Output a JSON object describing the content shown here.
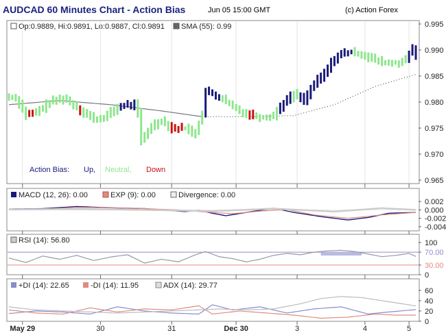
{
  "header": {
    "title": "AUDCAD 60 Minutes Chart - Action Bias",
    "datetime": "Jun 05 15:00 GMT",
    "copyright": "(c) Action Forex"
  },
  "colors": {
    "up": "#1a1a7a",
    "neutral": "#8ee68e",
    "down": "#cc1111",
    "sma": "#777777",
    "macd": "#1a1a7a",
    "exp": "#e08a80",
    "divergence": "#cccccc",
    "rsi": "#999999",
    "rsi_band": "#8b8bd0",
    "plus_di": "#8b8bd0",
    "minus_di": "#e08a80",
    "adx": "#bbbbbb"
  },
  "chart_data": [
    {
      "type": "ohlc",
      "panel": "price",
      "legend": {
        "ohlc": "Op:0.9889, Hi:0.9891, Lo:0.9887, Cl:0.9891",
        "sma": "SMA (55): 0.99"
      },
      "ylim": [
        0.965,
        0.995
      ],
      "yticks": [
        "0.995",
        "0.990",
        "0.985",
        "0.980",
        "0.975",
        "0.970",
        "0.965"
      ],
      "bias_label": {
        "title": "Action Bias:",
        "up": "Up,",
        "neutral": "Neutral,",
        "down": "Down"
      },
      "anchors": [
        {
          "i": 0,
          "v": 0.981
        },
        {
          "i": 2,
          "v": 0.9808
        },
        {
          "i": 5,
          "v": 0.9775
        },
        {
          "i": 8,
          "v": 0.978
        },
        {
          "i": 12,
          "v": 0.98
        },
        {
          "i": 16,
          "v": 0.9808
        },
        {
          "i": 19,
          "v": 0.9795
        },
        {
          "i": 23,
          "v": 0.9775
        },
        {
          "i": 26,
          "v": 0.9765
        },
        {
          "i": 29,
          "v": 0.9775
        },
        {
          "i": 32,
          "v": 0.979
        },
        {
          "i": 35,
          "v": 0.9795
        },
        {
          "i": 37,
          "v": 0.9795
        },
        {
          "i": 38,
          "v": 0.978
        },
        {
          "i": 39,
          "v": 0.9725
        },
        {
          "i": 42,
          "v": 0.9755
        },
        {
          "i": 45,
          "v": 0.9765
        },
        {
          "i": 48,
          "v": 0.975
        },
        {
          "i": 52,
          "v": 0.975
        },
        {
          "i": 55,
          "v": 0.974
        },
        {
          "i": 57,
          "v": 0.978
        },
        {
          "i": 58,
          "v": 0.982
        },
        {
          "i": 60,
          "v": 0.9815
        },
        {
          "i": 63,
          "v": 0.9805
        },
        {
          "i": 66,
          "v": 0.979
        },
        {
          "i": 69,
          "v": 0.978
        },
        {
          "i": 72,
          "v": 0.9775
        },
        {
          "i": 75,
          "v": 0.977
        },
        {
          "i": 78,
          "v": 0.9775
        },
        {
          "i": 81,
          "v": 0.98
        },
        {
          "i": 84,
          "v": 0.9815
        },
        {
          "i": 87,
          "v": 0.9805
        },
        {
          "i": 90,
          "v": 0.9835
        },
        {
          "i": 93,
          "v": 0.9855
        },
        {
          "i": 96,
          "v": 0.9885
        },
        {
          "i": 99,
          "v": 0.9895
        },
        {
          "i": 102,
          "v": 0.9895
        },
        {
          "i": 105,
          "v": 0.989
        },
        {
          "i": 108,
          "v": 0.988
        },
        {
          "i": 111,
          "v": 0.9875
        },
        {
          "i": 114,
          "v": 0.9875
        },
        {
          "i": 117,
          "v": 0.988
        },
        {
          "i": 119,
          "v": 0.9905
        },
        {
          "i": 120,
          "v": 0.989
        }
      ],
      "bar_count": 121,
      "bias_segments": [
        {
          "from": 0,
          "to": 5,
          "bias": "neutral"
        },
        {
          "from": 6,
          "to": 7,
          "bias": "down"
        },
        {
          "from": 8,
          "to": 20,
          "bias": "neutral"
        },
        {
          "from": 21,
          "to": 21,
          "bias": "down"
        },
        {
          "from": 22,
          "to": 32,
          "bias": "neutral"
        },
        {
          "from": 33,
          "to": 37,
          "bias": "up"
        },
        {
          "from": 38,
          "to": 47,
          "bias": "neutral"
        },
        {
          "from": 48,
          "to": 51,
          "bias": "down"
        },
        {
          "from": 52,
          "to": 57,
          "bias": "neutral"
        },
        {
          "from": 58,
          "to": 62,
          "bias": "up"
        },
        {
          "from": 63,
          "to": 70,
          "bias": "neutral"
        },
        {
          "from": 71,
          "to": 72,
          "bias": "down"
        },
        {
          "from": 73,
          "to": 79,
          "bias": "neutral"
        },
        {
          "from": 80,
          "to": 83,
          "bias": "up"
        },
        {
          "from": 84,
          "to": 85,
          "bias": "neutral"
        },
        {
          "from": 86,
          "to": 101,
          "bias": "up"
        },
        {
          "from": 102,
          "to": 117,
          "bias": "neutral"
        },
        {
          "from": 118,
          "to": 120,
          "bias": "up"
        }
      ],
      "sma_points": [
        {
          "i": 0,
          "v": 0.9795
        },
        {
          "i": 15,
          "v": 0.9803
        },
        {
          "i": 30,
          "v": 0.9795
        },
        {
          "i": 45,
          "v": 0.9783
        },
        {
          "i": 57,
          "v": 0.9772
        },
        {
          "i": 72,
          "v": 0.9772
        },
        {
          "i": 84,
          "v": 0.9774
        },
        {
          "i": 96,
          "v": 0.9795
        },
        {
          "i": 108,
          "v": 0.983
        },
        {
          "i": 120,
          "v": 0.9853
        }
      ],
      "x_ticks": [
        "May 29",
        "30",
        "31",
        "Dec 30",
        "3",
        "4",
        "5"
      ],
      "x_tick_bars": [
        4,
        27,
        48,
        67,
        85,
        105,
        118
      ]
    },
    {
      "type": "line",
      "panel": "macd",
      "legend": {
        "macd": "MACD (12, 26): 0.00",
        "exp": "EXP (9): 0.00",
        "divergence": "Divergence: 0.00"
      },
      "ylim": [
        -0.005,
        0.003
      ],
      "yticks": [
        "0.002",
        "0.000",
        "-0.002",
        "-0.004"
      ],
      "series": [
        {
          "key": "macd",
          "points": [
            [
              0,
              0.0002
            ],
            [
              10,
              0.0003
            ],
            [
              20,
              0.0008
            ],
            [
              30,
              0.0005
            ],
            [
              40,
              0.0003
            ],
            [
              48,
              -0.0002
            ],
            [
              52,
              -0.0004
            ],
            [
              56,
              -0.0001
            ],
            [
              60,
              -0.0008
            ],
            [
              64,
              -0.0014
            ],
            [
              70,
              -0.0006
            ],
            [
              78,
              0.0004
            ],
            [
              84,
              -0.0006
            ],
            [
              92,
              -0.0016
            ],
            [
              100,
              -0.0024
            ],
            [
              106,
              -0.0018
            ],
            [
              112,
              -0.0008
            ],
            [
              120,
              -0.0006
            ]
          ]
        },
        {
          "key": "exp",
          "points": [
            [
              0,
              0.0001
            ],
            [
              10,
              0.0002
            ],
            [
              20,
              0.0006
            ],
            [
              30,
              0.0005
            ],
            [
              40,
              0.0003
            ],
            [
              50,
              0.0
            ],
            [
              58,
              -0.0005
            ],
            [
              66,
              -0.0009
            ],
            [
              74,
              -0.0003
            ],
            [
              82,
              0.0001
            ],
            [
              90,
              -0.0012
            ],
            [
              100,
              -0.002
            ],
            [
              110,
              -0.0012
            ],
            [
              120,
              -0.0006
            ]
          ]
        },
        {
          "key": "divergence",
          "points": [
            [
              0,
              0.0001
            ],
            [
              20,
              0.0002
            ],
            [
              40,
              0.0
            ],
            [
              60,
              -0.0003
            ],
            [
              78,
              0.0003
            ],
            [
              96,
              -0.0004
            ],
            [
              110,
              0.0004
            ],
            [
              120,
              0.0
            ]
          ]
        }
      ]
    },
    {
      "type": "line",
      "panel": "rsi",
      "legend": {
        "rsi": "RSI (14): 56.80"
      },
      "ylim": [
        0,
        100
      ],
      "yticks": [
        "100",
        "70.00",
        "30.00",
        "0"
      ],
      "series": [
        {
          "key": "rsi",
          "points": [
            [
              0,
              52
            ],
            [
              5,
              38
            ],
            [
              10,
              58
            ],
            [
              15,
              48
            ],
            [
              20,
              60
            ],
            [
              25,
              44
            ],
            [
              30,
              55
            ],
            [
              35,
              62
            ],
            [
              40,
              36
            ],
            [
              45,
              48
            ],
            [
              50,
              40
            ],
            [
              55,
              62
            ],
            [
              58,
              72
            ],
            [
              62,
              56
            ],
            [
              66,
              50
            ],
            [
              70,
              40
            ],
            [
              74,
              48
            ],
            [
              78,
              60
            ],
            [
              82,
              66
            ],
            [
              86,
              62
            ],
            [
              90,
              70
            ],
            [
              94,
              74
            ],
            [
              98,
              76
            ],
            [
              102,
              72
            ],
            [
              106,
              64
            ],
            [
              110,
              56
            ],
            [
              114,
              60
            ],
            [
              118,
              66
            ],
            [
              120,
              56.8
            ]
          ]
        }
      ]
    },
    {
      "type": "line",
      "panel": "dmi",
      "legend": {
        "plus_di": "+DI (14): 22.65",
        "minus_di": "-DI (14): 11.95",
        "adx": "ADX (14): 29.77"
      },
      "ylim": [
        0,
        65
      ],
      "yticks": [
        "60",
        "40",
        "20",
        "0"
      ],
      "series": [
        {
          "key": "plus_di",
          "points": [
            [
              0,
              15
            ],
            [
              8,
              20
            ],
            [
              16,
              18
            ],
            [
              24,
              14
            ],
            [
              32,
              28
            ],
            [
              40,
              20
            ],
            [
              48,
              16
            ],
            [
              56,
              14
            ],
            [
              60,
              32
            ],
            [
              66,
              22
            ],
            [
              74,
              28
            ],
            [
              82,
              16
            ],
            [
              90,
              24
            ],
            [
              98,
              28
            ],
            [
              106,
              14
            ],
            [
              112,
              18
            ],
            [
              120,
              22.65
            ]
          ]
        },
        {
          "key": "minus_di",
          "points": [
            [
              0,
              22
            ],
            [
              8,
              16
            ],
            [
              16,
              14
            ],
            [
              24,
              26
            ],
            [
              32,
              18
            ],
            [
              40,
              24
            ],
            [
              48,
              22
            ],
            [
              56,
              30
            ],
            [
              60,
              14
            ],
            [
              68,
              20
            ],
            [
              76,
              16
            ],
            [
              84,
              12
            ],
            [
              92,
              6
            ],
            [
              100,
              8
            ],
            [
              108,
              14
            ],
            [
              114,
              12
            ],
            [
              120,
              11.95
            ]
          ]
        },
        {
          "key": "adx",
          "points": [
            [
              0,
              28
            ],
            [
              8,
              22
            ],
            [
              16,
              20
            ],
            [
              24,
              18
            ],
            [
              32,
              16
            ],
            [
              40,
              18
            ],
            [
              48,
              20
            ],
            [
              56,
              22
            ],
            [
              62,
              24
            ],
            [
              70,
              22
            ],
            [
              78,
              24
            ],
            [
              86,
              34
            ],
            [
              92,
              44
            ],
            [
              98,
              48
            ],
            [
              104,
              46
            ],
            [
              110,
              40
            ],
            [
              116,
              34
            ],
            [
              120,
              29.77
            ]
          ]
        }
      ]
    }
  ]
}
